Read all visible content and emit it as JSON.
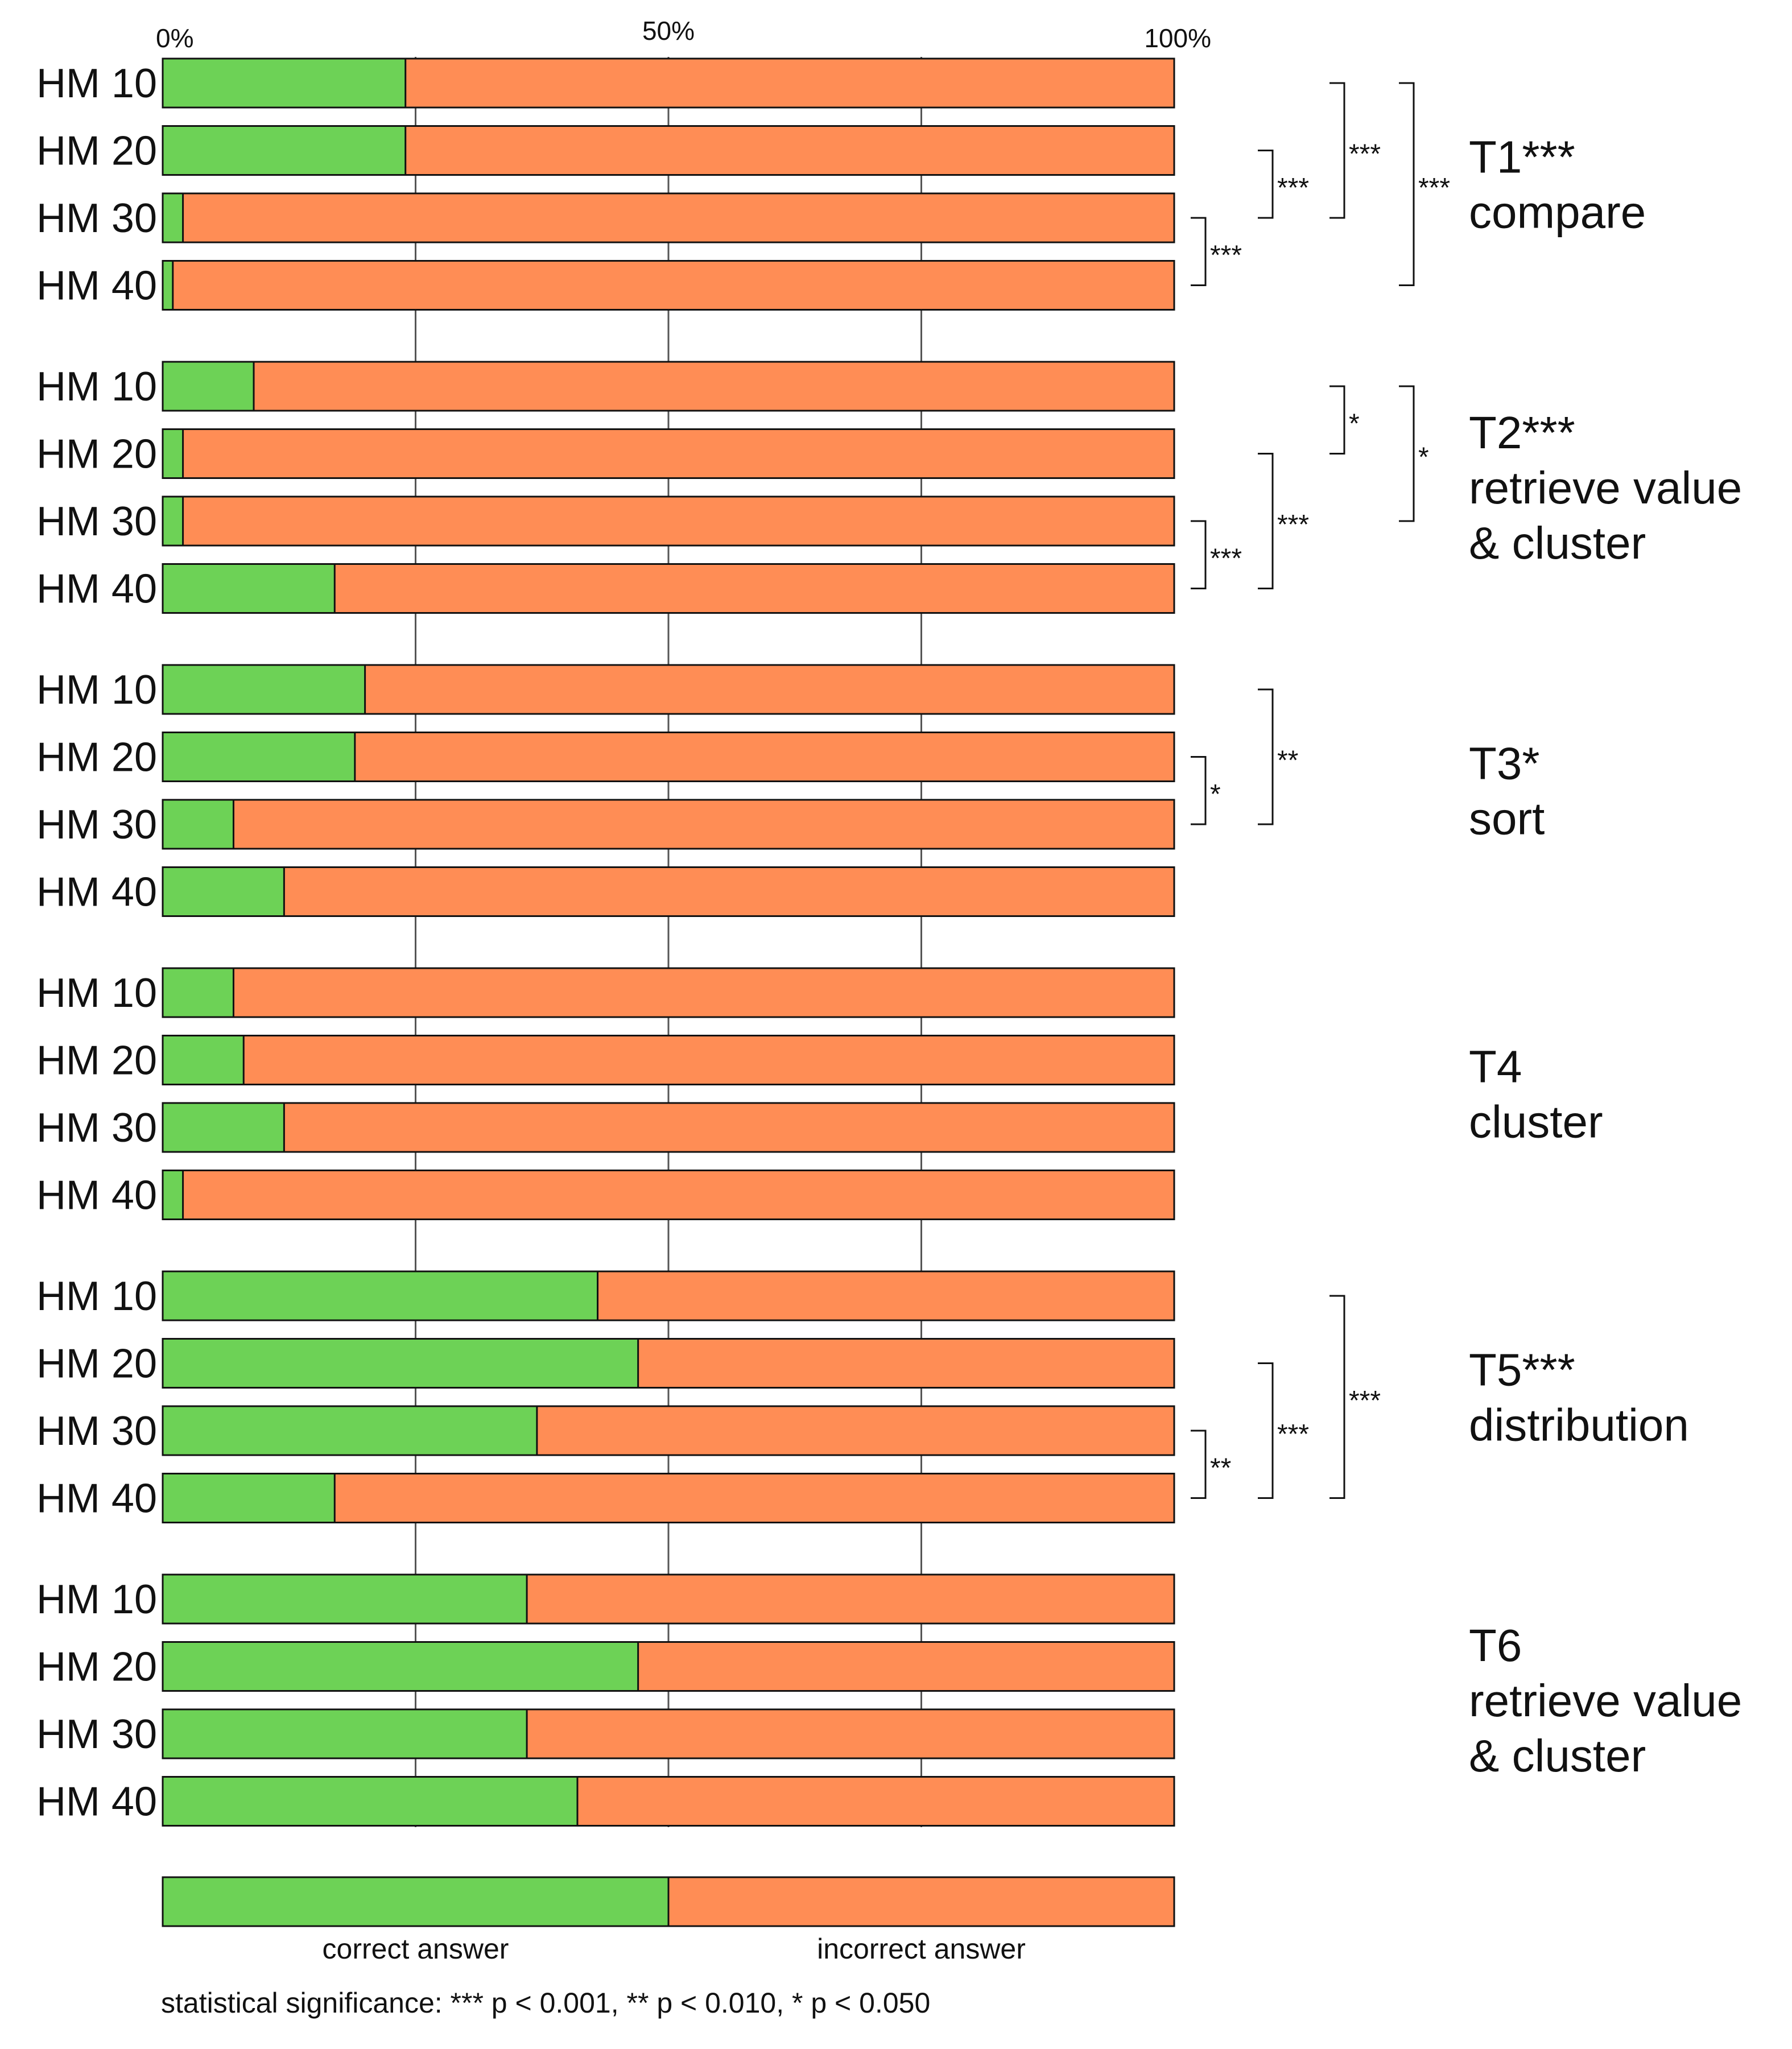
{
  "chart_data": {
    "type": "bar",
    "orientation": "horizontal",
    "stacked": true,
    "xlim": [
      0,
      100
    ],
    "ticks": [
      {
        "value": 0,
        "label": "0%"
      },
      {
        "value": 50,
        "label": "50%"
      },
      {
        "value": 100,
        "label": "100%"
      }
    ],
    "grid_lines": [
      25,
      50,
      75
    ],
    "series": [
      {
        "name": "correct answer",
        "color": "#6dd256"
      },
      {
        "name": "incorrect answer",
        "color": "#ff8d55"
      }
    ],
    "groups": [
      {
        "task": "T1***",
        "subtitle": [
          "compare"
        ],
        "rows": [
          {
            "label": "HM 10",
            "correct": 24
          },
          {
            "label": "HM 20",
            "correct": 24
          },
          {
            "label": "HM 30",
            "correct": 2
          },
          {
            "label": "HM 40",
            "correct": 1
          }
        ],
        "brackets": [
          {
            "from": 2,
            "to": 3,
            "stars": "***"
          },
          {
            "from": 1,
            "to": 2,
            "stars": "***"
          },
          {
            "from": 0,
            "to": 2,
            "stars": "***"
          },
          {
            "from": 0,
            "to": 3,
            "stars": "***"
          }
        ]
      },
      {
        "task": "T2***",
        "subtitle": [
          "retrieve value",
          "& cluster"
        ],
        "rows": [
          {
            "label": "HM 10",
            "correct": 9
          },
          {
            "label": "HM 20",
            "correct": 2
          },
          {
            "label": "HM 30",
            "correct": 2
          },
          {
            "label": "HM 40",
            "correct": 17
          }
        ],
        "brackets": [
          {
            "from": 2,
            "to": 3,
            "stars": "***"
          },
          {
            "from": 1,
            "to": 3,
            "stars": "***"
          },
          {
            "from": 0,
            "to": 1,
            "stars": "*"
          },
          {
            "from": 0,
            "to": 2,
            "stars": "*"
          }
        ]
      },
      {
        "task": "T3*",
        "subtitle": [
          "sort"
        ],
        "rows": [
          {
            "label": "HM 10",
            "correct": 20
          },
          {
            "label": "HM 20",
            "correct": 19
          },
          {
            "label": "HM 30",
            "correct": 7
          },
          {
            "label": "HM 40",
            "correct": 12
          }
        ],
        "brackets": [
          {
            "from": 1,
            "to": 2,
            "stars": "*"
          },
          {
            "from": 0,
            "to": 2,
            "stars": "**"
          }
        ]
      },
      {
        "task": "T4",
        "subtitle": [
          "cluster"
        ],
        "rows": [
          {
            "label": "HM 10",
            "correct": 7
          },
          {
            "label": "HM 20",
            "correct": 8
          },
          {
            "label": "HM 30",
            "correct": 12
          },
          {
            "label": "HM 40",
            "correct": 2
          }
        ],
        "brackets": []
      },
      {
        "task": "T5***",
        "subtitle": [
          "distribution"
        ],
        "rows": [
          {
            "label": "HM 10",
            "correct": 43
          },
          {
            "label": "HM 20",
            "correct": 47
          },
          {
            "label": "HM 30",
            "correct": 37
          },
          {
            "label": "HM 40",
            "correct": 17
          }
        ],
        "brackets": [
          {
            "from": 2,
            "to": 3,
            "stars": "**"
          },
          {
            "from": 1,
            "to": 3,
            "stars": "***"
          },
          {
            "from": 0,
            "to": 3,
            "stars": "***"
          }
        ]
      },
      {
        "task": "T6",
        "subtitle": [
          "retrieve value",
          "& cluster"
        ],
        "rows": [
          {
            "label": "HM 10",
            "correct": 36
          },
          {
            "label": "HM 20",
            "correct": 47
          },
          {
            "label": "HM 30",
            "correct": 36
          },
          {
            "label": "HM 40",
            "correct": 41
          }
        ],
        "brackets": []
      }
    ],
    "legend": {
      "correct_value": 50,
      "correct_label": "correct answer",
      "incorrect_label": "incorrect answer"
    },
    "note": "statistical significance: *** p < 0.001, ** p < 0.010, * p < 0.050"
  }
}
